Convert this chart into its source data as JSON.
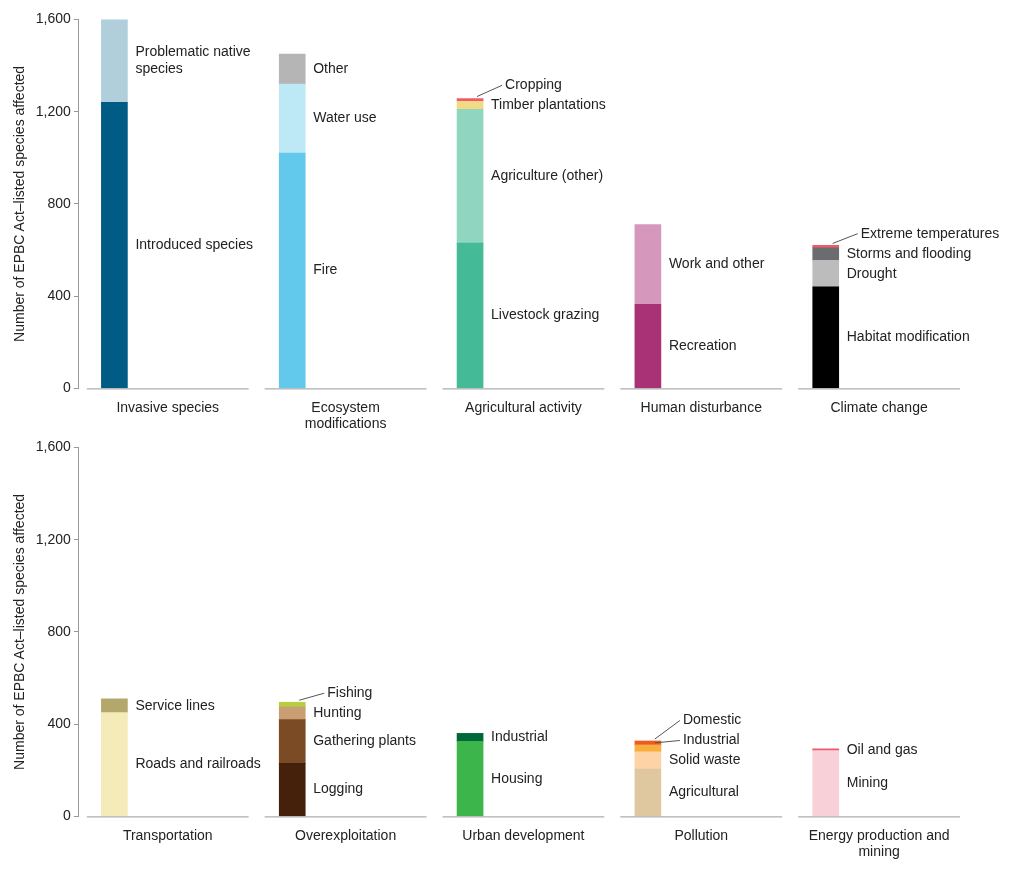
{
  "chart_data": [
    {
      "type": "bar",
      "stacked": true,
      "ylabel": "Number of EPBC Act–listed species affected",
      "categories": [
        "Invasive species",
        "Ecosystem modifications",
        "Agricultural activity",
        "Human disturbance",
        "Climate change"
      ],
      "ylim": [
        0,
        1600
      ],
      "yticks": [
        0,
        {
          "value": 400,
          "label": "400"
        },
        {
          "value": 800,
          "label": "800"
        },
        {
          "value": 1200,
          "label": "1,200"
        },
        {
          "value": 1600,
          "label": "1,600"
        }
      ],
      "series": [
        {
          "name": "Introduced species",
          "color": "#005b85",
          "values": [
            1240,
            null,
            null,
            null,
            null
          ]
        },
        {
          "name": "Problematic native species",
          "color": "#b0cfdb",
          "values": [
            360,
            null,
            null,
            null,
            null
          ]
        },
        {
          "name": "Fire",
          "color": "#63c9ec",
          "values": [
            null,
            1020,
            null,
            null,
            null
          ]
        },
        {
          "name": "Water use",
          "color": "#bde8f5",
          "values": [
            null,
            300,
            null,
            null,
            null
          ]
        },
        {
          "name": "Other",
          "color": "#b5b5b5",
          "values": [
            null,
            130,
            null,
            null,
            null
          ]
        },
        {
          "name": "Livestock grazing",
          "color": "#44bb96",
          "values": [
            null,
            null,
            630,
            null,
            null
          ]
        },
        {
          "name": "Agriculture (other)",
          "color": "#8fd5bf",
          "values": [
            null,
            null,
            580,
            null,
            null
          ]
        },
        {
          "name": "Timber plantations",
          "color": "#f1da84",
          "values": [
            null,
            null,
            35,
            null,
            null
          ]
        },
        {
          "name": "Cropping",
          "color": "#ef5b6b",
          "values": [
            null,
            null,
            12,
            null,
            null
          ]
        },
        {
          "name": "Recreation",
          "color": "#a93276",
          "values": [
            null,
            null,
            null,
            365,
            null
          ]
        },
        {
          "name": "Work and other",
          "color": "#d597bb",
          "values": [
            null,
            null,
            null,
            345,
            null
          ]
        },
        {
          "name": "Habitat modification",
          "color": "#000000",
          "values": [
            null,
            null,
            null,
            null,
            440
          ]
        },
        {
          "name": "Drought",
          "color": "#bcbcbc",
          "values": [
            null,
            null,
            null,
            null,
            115
          ]
        },
        {
          "name": "Storms and flooding",
          "color": "#6b6c70",
          "values": [
            null,
            null,
            null,
            null,
            55
          ]
        },
        {
          "name": "Extreme temperatures",
          "color": "#ef5b6b",
          "values": [
            null,
            null,
            null,
            null,
            10
          ]
        }
      ]
    },
    {
      "type": "bar",
      "stacked": true,
      "ylabel": "Number of EPBC Act–listed species affected",
      "categories": [
        "Transportation",
        "Overexploitation",
        "Urban development",
        "Pollution",
        "Energy production and mining"
      ],
      "ylim": [
        0,
        1600
      ],
      "yticks": [
        0,
        {
          "value": 400,
          "label": "400"
        },
        {
          "value": 800,
          "label": "800"
        },
        {
          "value": 1200,
          "label": "1,200"
        },
        {
          "value": 1600,
          "label": "1,600"
        }
      ],
      "series": [
        {
          "name": "Roads and railroads",
          "color": "#f5ebb8",
          "values": [
            450,
            null,
            null,
            null,
            null
          ]
        },
        {
          "name": "Service lines",
          "color": "#b4a76c",
          "values": [
            60,
            null,
            null,
            null,
            null
          ]
        },
        {
          "name": "Logging",
          "color": "#45200b",
          "values": [
            null,
            230,
            null,
            null,
            null
          ]
        },
        {
          "name": "Gathering plants",
          "color": "#7a4b24",
          "values": [
            null,
            190,
            null,
            null,
            null
          ]
        },
        {
          "name": "Hunting",
          "color": "#c99e73",
          "values": [
            null,
            55,
            null,
            null,
            null
          ]
        },
        {
          "name": "Fishing",
          "color": "#b6cf3e",
          "values": [
            null,
            20,
            null,
            null,
            null
          ]
        },
        {
          "name": "Housing",
          "color": "#3cb54a",
          "values": [
            null,
            null,
            325,
            null,
            null
          ]
        },
        {
          "name": "Industrial",
          "color": "#006838",
          "values": [
            null,
            null,
            35,
            null,
            null
          ]
        },
        {
          "name": "Agricultural",
          "color": "#dfc79f",
          "values": [
            null,
            null,
            null,
            205,
            null
          ]
        },
        {
          "name": "Solid waste",
          "color": "#fed3a5",
          "values": [
            null,
            null,
            null,
            75,
            null
          ]
        },
        {
          "name": "Industrial",
          "color": "#f8ae3c",
          "values": [
            null,
            null,
            null,
            30,
            null
          ]
        },
        {
          "name": "Domestic",
          "color": "#ee5a24",
          "values": [
            null,
            null,
            null,
            17,
            null
          ]
        },
        {
          "name": "Mining",
          "color": "#f8d0d8",
          "values": [
            null,
            null,
            null,
            null,
            285
          ]
        },
        {
          "name": "Oil and gas",
          "color": "#ee5a6d",
          "values": [
            null,
            null,
            null,
            null,
            8
          ]
        }
      ]
    }
  ]
}
